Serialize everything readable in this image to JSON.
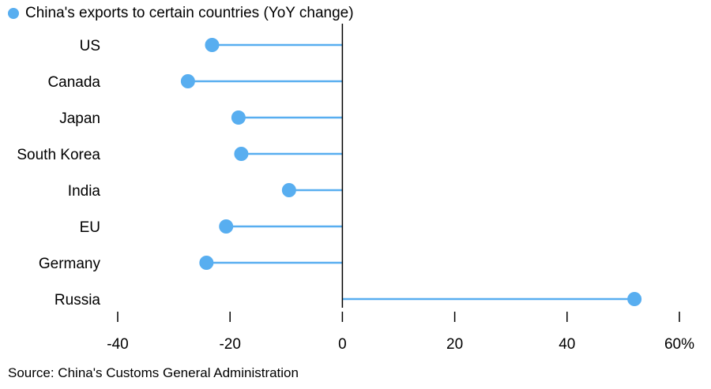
{
  "chart_data": {
    "type": "lollipop",
    "orientation": "horizontal",
    "legend": {
      "label": "China's exports to certain countries (YoY change)",
      "placement": "top-left"
    },
    "categories": [
      "US",
      "Canada",
      "Japan",
      "South Korea",
      "India",
      "EU",
      "Germany",
      "Russia"
    ],
    "series": [
      {
        "name": "China's exports to certain countries (YoY change)",
        "values": [
          -23.2,
          -27.5,
          -18.5,
          -18.0,
          -9.5,
          -20.7,
          -24.2,
          52.0
        ]
      }
    ],
    "xaxis": {
      "ticks": [
        -40,
        -20,
        0,
        20,
        40,
        60
      ],
      "tick_labels": [
        "-40",
        "-20",
        "0",
        "20",
        "40",
        "60%"
      ],
      "xlim": [
        -40,
        60
      ]
    },
    "grid": false,
    "colors": {
      "series": "#58aef0",
      "axis": "#000000"
    }
  },
  "footer": {
    "source": "Source: China's Customs General Administration"
  }
}
